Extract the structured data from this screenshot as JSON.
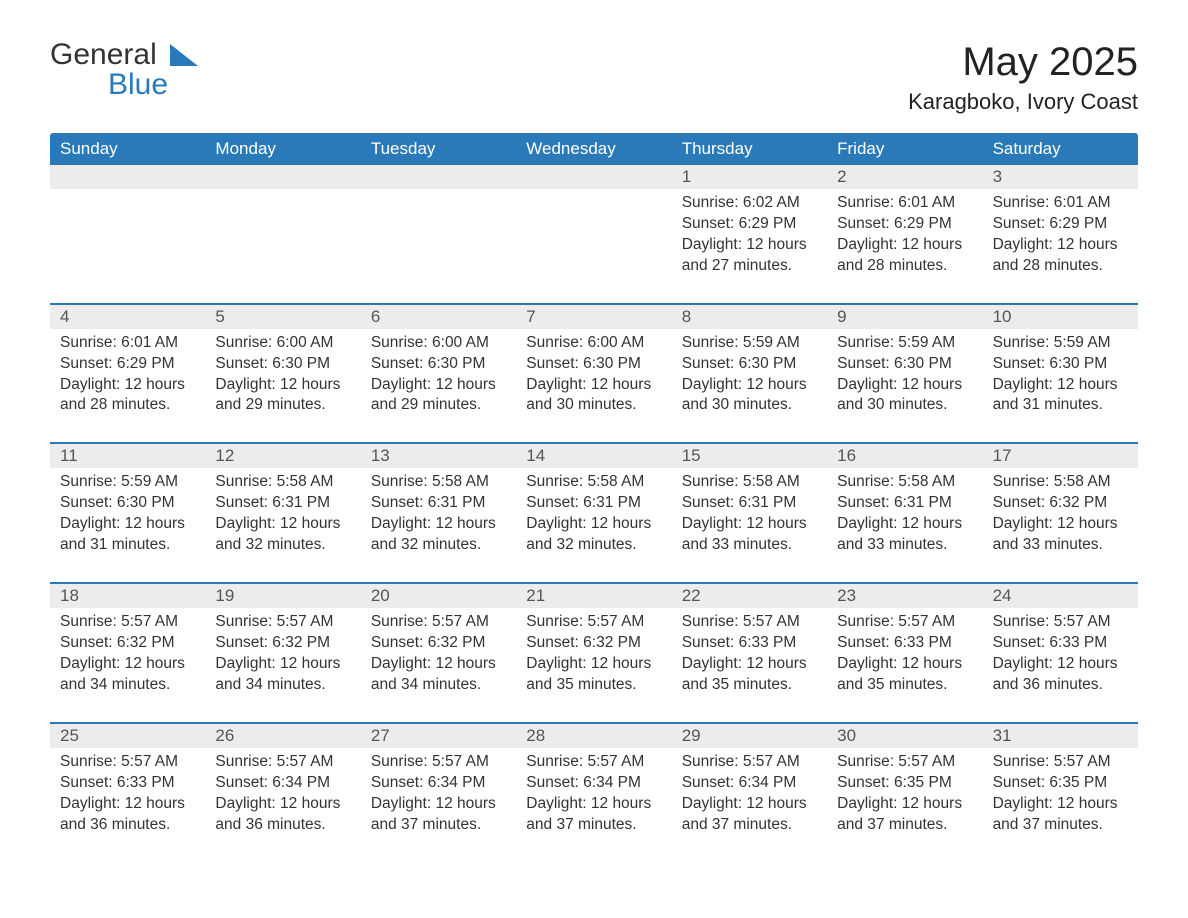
{
  "logo": {
    "word1": "General",
    "word2": "Blue"
  },
  "title": "May 2025",
  "location": "Karagboko, Ivory Coast",
  "colors": {
    "header_bg": "#2a7ab9",
    "header_text": "#ffffff",
    "daynum_bg": "#ececec",
    "row_border": "#2a7ab9",
    "body_text": "#333333",
    "logo_accent": "#2a7ab9"
  },
  "weekdays": [
    "Sunday",
    "Monday",
    "Tuesday",
    "Wednesday",
    "Thursday",
    "Friday",
    "Saturday"
  ],
  "weeks": [
    {
      "nums": [
        "",
        "",
        "",
        "",
        "1",
        "2",
        "3"
      ],
      "cells": [
        null,
        null,
        null,
        null,
        {
          "sunrise": "6:02 AM",
          "sunset": "6:29 PM",
          "day_l1": "Daylight: 12 hours",
          "day_l2": "and 27 minutes."
        },
        {
          "sunrise": "6:01 AM",
          "sunset": "6:29 PM",
          "day_l1": "Daylight: 12 hours",
          "day_l2": "and 28 minutes."
        },
        {
          "sunrise": "6:01 AM",
          "sunset": "6:29 PM",
          "day_l1": "Daylight: 12 hours",
          "day_l2": "and 28 minutes."
        }
      ]
    },
    {
      "nums": [
        "4",
        "5",
        "6",
        "7",
        "8",
        "9",
        "10"
      ],
      "cells": [
        {
          "sunrise": "6:01 AM",
          "sunset": "6:29 PM",
          "day_l1": "Daylight: 12 hours",
          "day_l2": "and 28 minutes."
        },
        {
          "sunrise": "6:00 AM",
          "sunset": "6:30 PM",
          "day_l1": "Daylight: 12 hours",
          "day_l2": "and 29 minutes."
        },
        {
          "sunrise": "6:00 AM",
          "sunset": "6:30 PM",
          "day_l1": "Daylight: 12 hours",
          "day_l2": "and 29 minutes."
        },
        {
          "sunrise": "6:00 AM",
          "sunset": "6:30 PM",
          "day_l1": "Daylight: 12 hours",
          "day_l2": "and 30 minutes."
        },
        {
          "sunrise": "5:59 AM",
          "sunset": "6:30 PM",
          "day_l1": "Daylight: 12 hours",
          "day_l2": "and 30 minutes."
        },
        {
          "sunrise": "5:59 AM",
          "sunset": "6:30 PM",
          "day_l1": "Daylight: 12 hours",
          "day_l2": "and 30 minutes."
        },
        {
          "sunrise": "5:59 AM",
          "sunset": "6:30 PM",
          "day_l1": "Daylight: 12 hours",
          "day_l2": "and 31 minutes."
        }
      ]
    },
    {
      "nums": [
        "11",
        "12",
        "13",
        "14",
        "15",
        "16",
        "17"
      ],
      "cells": [
        {
          "sunrise": "5:59 AM",
          "sunset": "6:30 PM",
          "day_l1": "Daylight: 12 hours",
          "day_l2": "and 31 minutes."
        },
        {
          "sunrise": "5:58 AM",
          "sunset": "6:31 PM",
          "day_l1": "Daylight: 12 hours",
          "day_l2": "and 32 minutes."
        },
        {
          "sunrise": "5:58 AM",
          "sunset": "6:31 PM",
          "day_l1": "Daylight: 12 hours",
          "day_l2": "and 32 minutes."
        },
        {
          "sunrise": "5:58 AM",
          "sunset": "6:31 PM",
          "day_l1": "Daylight: 12 hours",
          "day_l2": "and 32 minutes."
        },
        {
          "sunrise": "5:58 AM",
          "sunset": "6:31 PM",
          "day_l1": "Daylight: 12 hours",
          "day_l2": "and 33 minutes."
        },
        {
          "sunrise": "5:58 AM",
          "sunset": "6:31 PM",
          "day_l1": "Daylight: 12 hours",
          "day_l2": "and 33 minutes."
        },
        {
          "sunrise": "5:58 AM",
          "sunset": "6:32 PM",
          "day_l1": "Daylight: 12 hours",
          "day_l2": "and 33 minutes."
        }
      ]
    },
    {
      "nums": [
        "18",
        "19",
        "20",
        "21",
        "22",
        "23",
        "24"
      ],
      "cells": [
        {
          "sunrise": "5:57 AM",
          "sunset": "6:32 PM",
          "day_l1": "Daylight: 12 hours",
          "day_l2": "and 34 minutes."
        },
        {
          "sunrise": "5:57 AM",
          "sunset": "6:32 PM",
          "day_l1": "Daylight: 12 hours",
          "day_l2": "and 34 minutes."
        },
        {
          "sunrise": "5:57 AM",
          "sunset": "6:32 PM",
          "day_l1": "Daylight: 12 hours",
          "day_l2": "and 34 minutes."
        },
        {
          "sunrise": "5:57 AM",
          "sunset": "6:32 PM",
          "day_l1": "Daylight: 12 hours",
          "day_l2": "and 35 minutes."
        },
        {
          "sunrise": "5:57 AM",
          "sunset": "6:33 PM",
          "day_l1": "Daylight: 12 hours",
          "day_l2": "and 35 minutes."
        },
        {
          "sunrise": "5:57 AM",
          "sunset": "6:33 PM",
          "day_l1": "Daylight: 12 hours",
          "day_l2": "and 35 minutes."
        },
        {
          "sunrise": "5:57 AM",
          "sunset": "6:33 PM",
          "day_l1": "Daylight: 12 hours",
          "day_l2": "and 36 minutes."
        }
      ]
    },
    {
      "nums": [
        "25",
        "26",
        "27",
        "28",
        "29",
        "30",
        "31"
      ],
      "cells": [
        {
          "sunrise": "5:57 AM",
          "sunset": "6:33 PM",
          "day_l1": "Daylight: 12 hours",
          "day_l2": "and 36 minutes."
        },
        {
          "sunrise": "5:57 AM",
          "sunset": "6:34 PM",
          "day_l1": "Daylight: 12 hours",
          "day_l2": "and 36 minutes."
        },
        {
          "sunrise": "5:57 AM",
          "sunset": "6:34 PM",
          "day_l1": "Daylight: 12 hours",
          "day_l2": "and 37 minutes."
        },
        {
          "sunrise": "5:57 AM",
          "sunset": "6:34 PM",
          "day_l1": "Daylight: 12 hours",
          "day_l2": "and 37 minutes."
        },
        {
          "sunrise": "5:57 AM",
          "sunset": "6:34 PM",
          "day_l1": "Daylight: 12 hours",
          "day_l2": "and 37 minutes."
        },
        {
          "sunrise": "5:57 AM",
          "sunset": "6:35 PM",
          "day_l1": "Daylight: 12 hours",
          "day_l2": "and 37 minutes."
        },
        {
          "sunrise": "5:57 AM",
          "sunset": "6:35 PM",
          "day_l1": "Daylight: 12 hours",
          "day_l2": "and 37 minutes."
        }
      ]
    }
  ],
  "labels": {
    "sunrise": "Sunrise: ",
    "sunset": "Sunset: "
  }
}
